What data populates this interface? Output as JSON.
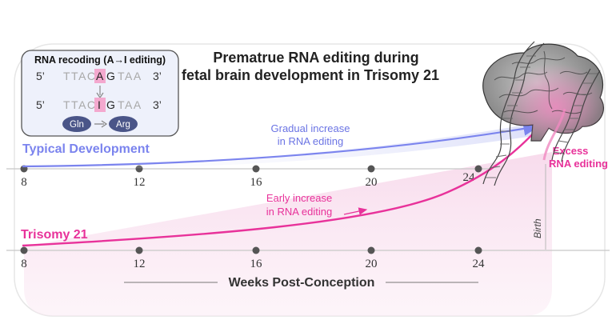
{
  "title": {
    "line1": "Prematrue RNA editing during",
    "line2": "fetal brain development in Trisomy 21"
  },
  "inset": {
    "heading": "RNA recoding (A→I editing)",
    "row1": {
      "prime5": "5’",
      "pre": "TTAC",
      "edited": "A",
      "mid": "G",
      "post": "TAA",
      "prime3": "3’"
    },
    "row2": {
      "prime5": "5’",
      "pre": "TTAC",
      "edited": "I",
      "mid": "G",
      "post": "TAA",
      "prime3": "3’"
    },
    "aa_from": "Gln",
    "aa_to": "Arg"
  },
  "tracks": {
    "typical": {
      "label": "Typical Development",
      "annotation_line1": "Gradual increase",
      "annotation_line2": "in RNA editing",
      "color": "#7b84ee"
    },
    "trisomy": {
      "label": "Trisomy 21",
      "annotation_line1": "Early increase",
      "annotation_line2": "in RNA editing",
      "color": "#e8329a"
    }
  },
  "excess": {
    "line1": "Excess",
    "line2": "RNA editing"
  },
  "birth_label": "Birth",
  "axis_title": "Weeks Post-Conception",
  "weeks": [
    "8",
    "12",
    "16",
    "20",
    "24"
  ],
  "colors": {
    "edit_highlight": "#f4a9cf",
    "amino_acid": "#4a5588",
    "panel_bg": "#eef1fb"
  }
}
